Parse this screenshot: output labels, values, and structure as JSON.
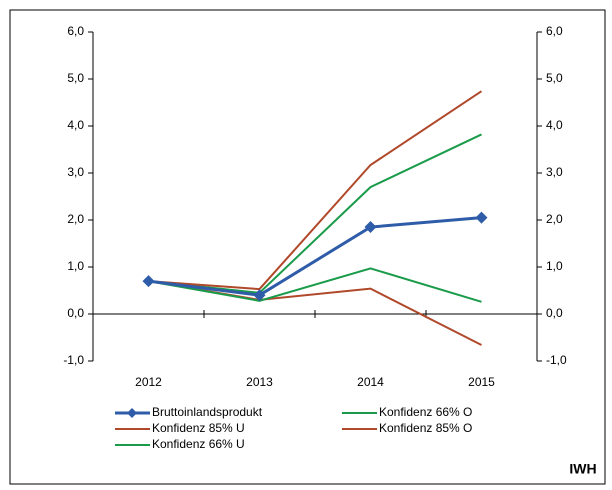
{
  "chart_data": {
    "type": "line",
    "categories": [
      "2012",
      "2013",
      "2014",
      "2015"
    ],
    "series": [
      {
        "name": "Bruttoinlandsprodukt",
        "color": "#2e5ca8",
        "values": [
          0.7,
          0.4,
          1.85,
          2.05
        ],
        "marker": "diamond"
      },
      {
        "name": "Konfidenz 66% O",
        "color": "#1a9b4a",
        "values": [
          0.7,
          0.45,
          2.7,
          3.82
        ]
      },
      {
        "name": "Konfidenz 85% U",
        "color": "#b0482a",
        "values": [
          0.7,
          0.3,
          0.54,
          -0.66
        ]
      },
      {
        "name": "Konfidenz 85% O",
        "color": "#b0482a",
        "values": [
          0.7,
          0.53,
          3.17,
          4.74
        ]
      },
      {
        "name": "Konfidenz 66% U",
        "color": "#1a9b4a",
        "values": [
          0.7,
          0.28,
          0.97,
          0.26
        ]
      }
    ],
    "ylim": [
      -1,
      6
    ],
    "yticks": [
      {
        "value": -1,
        "label": "-1,0"
      },
      {
        "value": 0,
        "label": "0,0"
      },
      {
        "value": 1,
        "label": "1,0"
      },
      {
        "value": 2,
        "label": "2,0"
      },
      {
        "value": 3,
        "label": "3,0"
      },
      {
        "value": 4,
        "label": "4,0"
      },
      {
        "value": 5,
        "label": "5,0"
      },
      {
        "value": 6,
        "label": "6,0"
      }
    ],
    "y2lim": [
      -1,
      6
    ],
    "y2ticks": [
      {
        "value": -1,
        "label": "-1,0"
      },
      {
        "value": 0,
        "label": "0,0"
      },
      {
        "value": 1,
        "label": "1,0"
      },
      {
        "value": 2,
        "label": "2,0"
      },
      {
        "value": 3,
        "label": "3,0"
      },
      {
        "value": 4,
        "label": "4,0"
      },
      {
        "value": 5,
        "label": "5,0"
      },
      {
        "value": 6,
        "label": "6,0"
      }
    ],
    "source": "IWH"
  }
}
